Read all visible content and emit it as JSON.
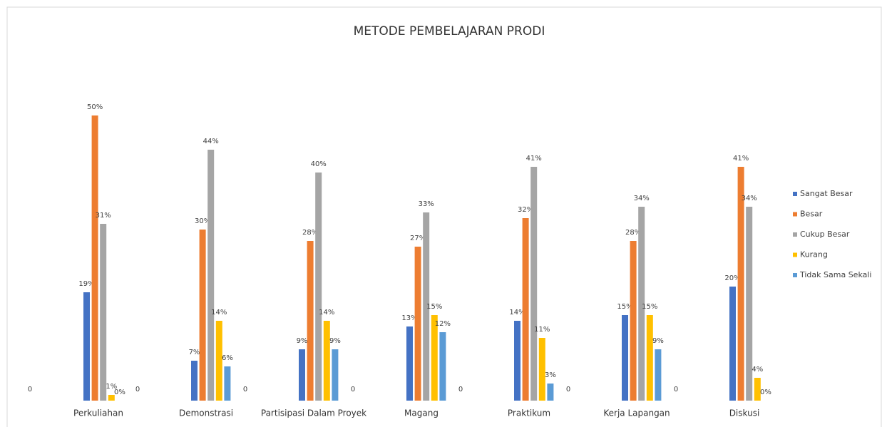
{
  "chart_data": {
    "type": "bar",
    "title": "METODE PEMBELAJARAN PRODI",
    "categories": [
      "Perkuliahan",
      "Demonstrasi",
      "Partisipasi Dalam Proyek",
      "Magang",
      "Praktikum",
      "Kerja Lapangan",
      "Diskusi"
    ],
    "series": [
      {
        "values": [
          0,
          0,
          0,
          0,
          0,
          0,
          0
        ]
      },
      {
        "name": "Sangat Besar",
        "color": "#4472c4",
        "values": [
          19,
          7,
          9,
          13,
          14,
          15,
          20
        ],
        "value_labels": [
          "19%",
          "7%",
          "9%",
          "13%",
          "14%",
          "15%",
          "20%"
        ]
      },
      {
        "name": "Besar",
        "color": "#ed7d31",
        "values": [
          50,
          30,
          28,
          27,
          32,
          28,
          41
        ],
        "value_labels": [
          "50%",
          "30%",
          "28%",
          "27%",
          "32%",
          "28%",
          "41%"
        ]
      },
      {
        "name": "Cukup Besar",
        "color": "#a5a5a5",
        "values": [
          31,
          44,
          40,
          33,
          41,
          34,
          34
        ],
        "value_labels": [
          "31%",
          "44%",
          "40%",
          "33%",
          "41%",
          "34%",
          "34%"
        ]
      },
      {
        "name": "Kurang",
        "color": "#ffc000",
        "values": [
          1,
          14,
          14,
          15,
          11,
          15,
          4
        ],
        "value_labels": [
          "1%",
          "14%",
          "14%",
          "15%",
          "11%",
          "15%",
          "4%"
        ]
      },
      {
        "name": "Tidak Sama Sekali",
        "color": "#5b9bd5",
        "values": [
          0,
          6,
          9,
          12,
          3,
          9,
          0
        ],
        "value_labels": [
          "0%",
          "6%",
          "9%",
          "12%",
          "3%",
          "9%",
          "0%"
        ]
      }
    ],
    "legend": "right"
  }
}
